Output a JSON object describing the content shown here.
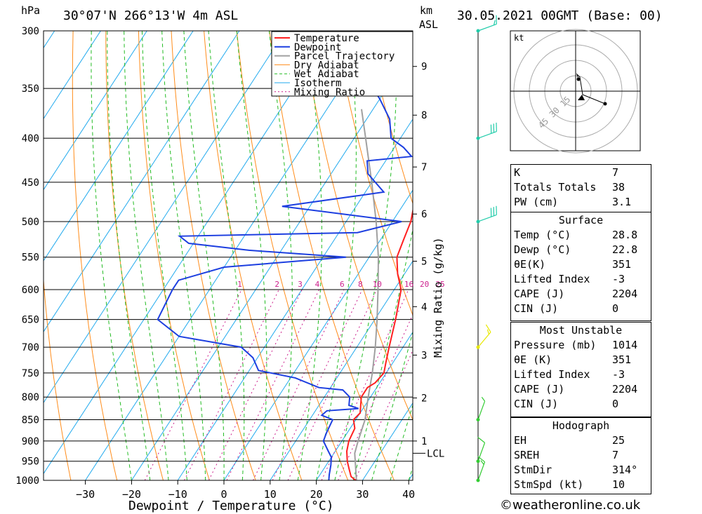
{
  "header": {
    "units_left": "hPa",
    "location": "30°07'N  266°13'W  4m  ASL",
    "units_km": "km",
    "units_asl": "ASL",
    "datetime": "30.05.2021  00GMT  (Base: 00)"
  },
  "chart_data": {
    "type": "skew-t log-p",
    "xlabel": "Dewpoint / Temperature (°C)",
    "x_ticks": [
      -30,
      -20,
      -10,
      0,
      10,
      20,
      30,
      40
    ],
    "pressure_levels": [
      300,
      350,
      400,
      450,
      500,
      550,
      600,
      650,
      700,
      750,
      800,
      850,
      900,
      950,
      1000
    ],
    "height_km_ticks": [
      {
        "km": "1",
        "p": 900
      },
      {
        "km": "2",
        "p": 802
      },
      {
        "km": "3",
        "p": 715
      },
      {
        "km": "4",
        "p": 628
      },
      {
        "km": "5",
        "p": 556
      },
      {
        "km": "6",
        "p": 490
      },
      {
        "km": "7",
        "p": 432
      },
      {
        "km": "8",
        "p": 376
      },
      {
        "km": "9",
        "p": 330
      }
    ],
    "lcl_label": "LCL",
    "lcl_p": 930,
    "mixing_ratio_axis_label": "Mixing Ratio (g/kg)",
    "mixing_ratio_values": [
      "1",
      "2",
      "3",
      "4",
      "6",
      "8",
      "10",
      "16",
      "20",
      "25"
    ],
    "legend": [
      {
        "name": "Temperature",
        "color": "#ff2020",
        "style": "solid"
      },
      {
        "name": "Dewpoint",
        "color": "#1d3fe0",
        "style": "solid"
      },
      {
        "name": "Parcel Trajectory",
        "color": "#a0a0a0",
        "style": "solid"
      },
      {
        "name": "Dry Adiabat",
        "color": "#ff8c1a",
        "style": "solid"
      },
      {
        "name": "Wet Adiabat",
        "color": "#22bb22",
        "style": "dashed"
      },
      {
        "name": "Isotherm",
        "color": "#22aaee",
        "style": "solid"
      },
      {
        "name": "Mixing Ratio",
        "color": "#cc1e8c",
        "style": "dotted"
      }
    ],
    "temperature": [
      [
        1002,
        28.8
      ],
      [
        990,
        27
      ],
      [
        970,
        25.5
      ],
      [
        950,
        24
      ],
      [
        925,
        22.5
      ],
      [
        900,
        21.5
      ],
      [
        870,
        21
      ],
      [
        850,
        19.5
      ],
      [
        835,
        20
      ],
      [
        800,
        18
      ],
      [
        780,
        18
      ],
      [
        770,
        19
      ],
      [
        750,
        19.5
      ],
      [
        730,
        18.5
      ],
      [
        700,
        17
      ],
      [
        650,
        14.5
      ],
      [
        600,
        11.5
      ],
      [
        575,
        8.5
      ],
      [
        550,
        6
      ],
      [
        525,
        5
      ],
      [
        500,
        4
      ],
      [
        480,
        2.5
      ],
      [
        460,
        0.5
      ],
      [
        440,
        -2
      ],
      [
        420,
        -4.5
      ],
      [
        400,
        -7
      ],
      [
        380,
        -9.5
      ],
      [
        360,
        -12.5
      ],
      [
        340,
        -15.5
      ],
      [
        320,
        -18.5
      ],
      [
        300,
        -22.5
      ]
    ],
    "dewpoint": [
      [
        1002,
        22.8
      ],
      [
        985,
        22
      ],
      [
        960,
        21
      ],
      [
        940,
        20
      ],
      [
        925,
        18.5
      ],
      [
        900,
        16
      ],
      [
        880,
        15.5
      ],
      [
        850,
        15
      ],
      [
        840,
        12
      ],
      [
        830,
        12.5
      ],
      [
        825,
        19
      ],
      [
        818,
        16.5
      ],
      [
        800,
        15.5
      ],
      [
        785,
        13
      ],
      [
        780,
        7.5
      ],
      [
        760,
        1
      ],
      [
        745,
        -8
      ],
      [
        720,
        -11
      ],
      [
        700,
        -15
      ],
      [
        680,
        -30
      ],
      [
        650,
        -37
      ],
      [
        600,
        -38
      ],
      [
        585,
        -38
      ],
      [
        565,
        -30
      ],
      [
        550,
        -5
      ],
      [
        540,
        -27
      ],
      [
        530,
        -41
      ],
      [
        520,
        -44
      ],
      [
        515,
        -6
      ],
      [
        500,
        2
      ],
      [
        480,
        -26
      ],
      [
        462,
        -6
      ],
      [
        440,
        -12
      ],
      [
        425,
        -14
      ],
      [
        420,
        -5
      ],
      [
        410,
        -8
      ],
      [
        400,
        -12
      ],
      [
        380,
        -15
      ],
      [
        360,
        -20
      ],
      [
        340,
        -26
      ],
      [
        320,
        -31
      ],
      [
        300,
        -34
      ]
    ],
    "parcel": [
      [
        1002,
        28.8
      ],
      [
        930,
        24.5
      ],
      [
        900,
        23.5
      ],
      [
        850,
        22
      ],
      [
        800,
        19.5
      ],
      [
        750,
        17
      ],
      [
        700,
        14
      ],
      [
        650,
        10.5
      ],
      [
        600,
        6.5
      ],
      [
        550,
        2
      ],
      [
        500,
        -3.5
      ],
      [
        450,
        -10
      ],
      [
        400,
        -17.5
      ],
      [
        370,
        -22.5
      ]
    ],
    "wind_barbs": [
      {
        "p": 1000,
        "dir": 200,
        "speed": 15,
        "color": "#33cc33"
      },
      {
        "p": 950,
        "dir": 200,
        "speed": 10,
        "color": "#33cc33"
      },
      {
        "p": 850,
        "dir": 200,
        "speed": 5,
        "color": "#33cc33"
      },
      {
        "p": 700,
        "dir": 220,
        "speed": 15,
        "color": "#e8e800"
      },
      {
        "p": 500,
        "dir": 250,
        "speed": 30,
        "color": "#22ccaa"
      },
      {
        "p": 400,
        "dir": 250,
        "speed": 30,
        "color": "#22ccaa"
      },
      {
        "p": 300,
        "dir": 250,
        "speed": 15,
        "color": "#22ccaa"
      }
    ]
  },
  "hodograph": {
    "unit_label": "kt",
    "ring_labels": [
      "15",
      "30",
      "45"
    ]
  },
  "indices": {
    "general": [
      [
        "K",
        "7"
      ],
      [
        "Totals Totals",
        "38"
      ],
      [
        "PW (cm)",
        "3.1"
      ]
    ],
    "surface_title": "Surface",
    "surface": [
      [
        "Temp (°C)",
        "28.8"
      ],
      [
        "Dewp (°C)",
        "22.8"
      ],
      [
        "θE(K)",
        "351"
      ],
      [
        "Lifted Index",
        "-3"
      ],
      [
        "CAPE (J)",
        "2204"
      ],
      [
        "CIN (J)",
        "0"
      ]
    ],
    "mu_title": "Most Unstable",
    "mu": [
      [
        "Pressure (mb)",
        "1014"
      ],
      [
        "θE (K)",
        "351"
      ],
      [
        "Lifted Index",
        "-3"
      ],
      [
        "CAPE (J)",
        "2204"
      ],
      [
        "CIN (J)",
        "0"
      ]
    ],
    "hodo_title": "Hodograph",
    "hodo": [
      [
        "EH",
        "25"
      ],
      [
        "SREH",
        "7"
      ],
      [
        "StmDir",
        "314°"
      ],
      [
        "StmSpd (kt)",
        "10"
      ]
    ]
  },
  "credit": "©weatheronline.co.uk"
}
